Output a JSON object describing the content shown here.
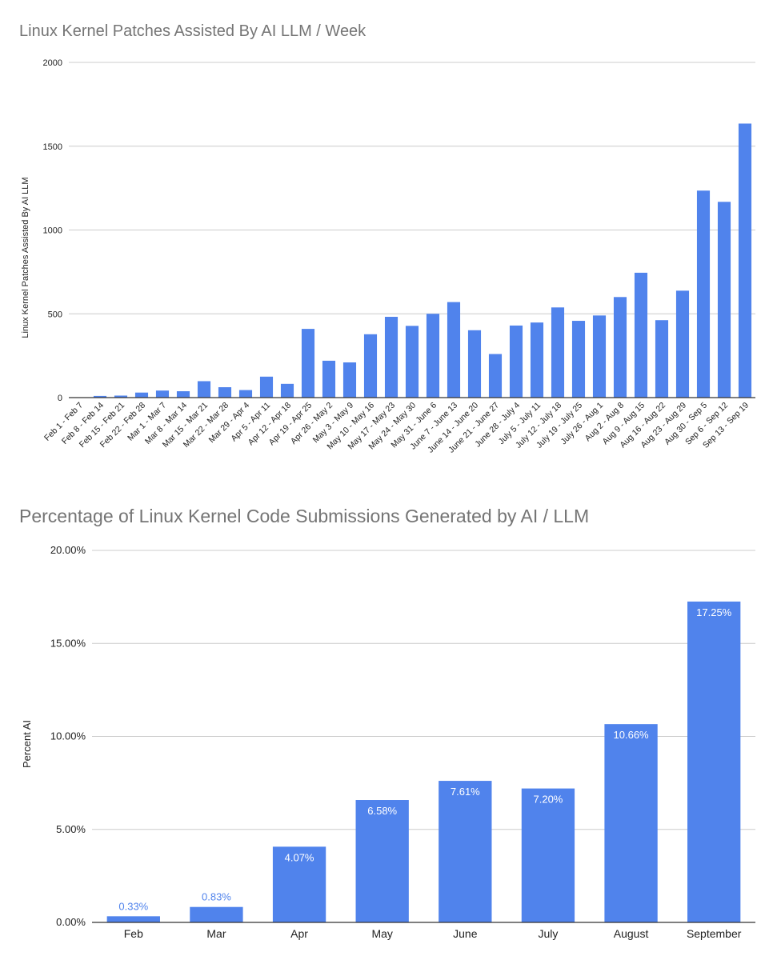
{
  "colors": {
    "bar": "#5083ec",
    "grid": "#cccccc",
    "axis": "#333333",
    "text": "#222222",
    "title": "#757575",
    "label_on_bar": "#ffffff",
    "label_above_bar": "#5083ec"
  },
  "chart_data": [
    {
      "type": "bar",
      "title": "Linux Kernel Patches Assisted By AI LLM / Week",
      "xlabel": "",
      "ylabel": "Linux Kernel Patches Assisted By AI LLM",
      "ylim": [
        0,
        2000
      ],
      "yticks": [
        0,
        500,
        1000,
        1500,
        2000
      ],
      "ytick_labels": [
        "0",
        "500",
        "1000",
        "1500",
        "2000"
      ],
      "grid": true,
      "categories": [
        "Feb 1 - Feb 7",
        "Feb 8 - Feb 14",
        "Feb 15 - Feb 21",
        "Feb 22 - Feb 28",
        "Mar 1 - Mar 7",
        "Mar 8 - Mar 14",
        "Mar 15 - Mar 21",
        "Mar 22 - Mar 28",
        "Mar 29 - Apr 4",
        "Apr 5 - Apr 11",
        "Apr 12 - Apr 18",
        "Apr 19 - Apr 25",
        "Apr 26 - May 2",
        "May 3 - May 9",
        "May 10 - May 16",
        "May 17 - May 23",
        "May 24 - May 30",
        "May 31 - June 6",
        "June 7 - June 13",
        "June 14 - June 20",
        "June 21 - June 27",
        "June 28 - July 4",
        "July 5 - July 11",
        "July 12 - July 18",
        "July 19 - July 25",
        "July 26 - Aug 1",
        "Aug 2 - Aug 8",
        "Aug 9 - Aug 15",
        "Aug 16 - Aug 22",
        "Aug 23 - Aug 29",
        "Aug 30 - Sep 5",
        "Sep 6 - Sep 12",
        "Sep 13 - Sep 19"
      ],
      "values": [
        2,
        10,
        12,
        30,
        42,
        38,
        98,
        62,
        45,
        125,
        82,
        410,
        220,
        210,
        378,
        482,
        428,
        500,
        570,
        402,
        260,
        430,
        448,
        538,
        458,
        490,
        600,
        745,
        462,
        638,
        1235,
        1168,
        1635
      ]
    },
    {
      "type": "bar",
      "title": "Percentage of Linux Kernel Code Submissions Generated by AI / LLM",
      "xlabel": "",
      "ylabel": "Percent AI",
      "ylim": [
        0,
        20
      ],
      "yticks": [
        0,
        5,
        10,
        15,
        20
      ],
      "ytick_labels": [
        "0.00%",
        "5.00%",
        "10.00%",
        "15.00%",
        "20.00%"
      ],
      "grid": true,
      "categories": [
        "Feb",
        "Mar",
        "Apr",
        "May",
        "June",
        "July",
        "August",
        "September"
      ],
      "values": [
        0.33,
        0.83,
        4.07,
        6.58,
        7.61,
        7.2,
        10.66,
        17.25
      ],
      "data_labels": [
        "0.33%",
        "0.83%",
        "4.07%",
        "6.58%",
        "7.61%",
        "7.20%",
        "10.66%",
        "17.25%"
      ]
    }
  ]
}
